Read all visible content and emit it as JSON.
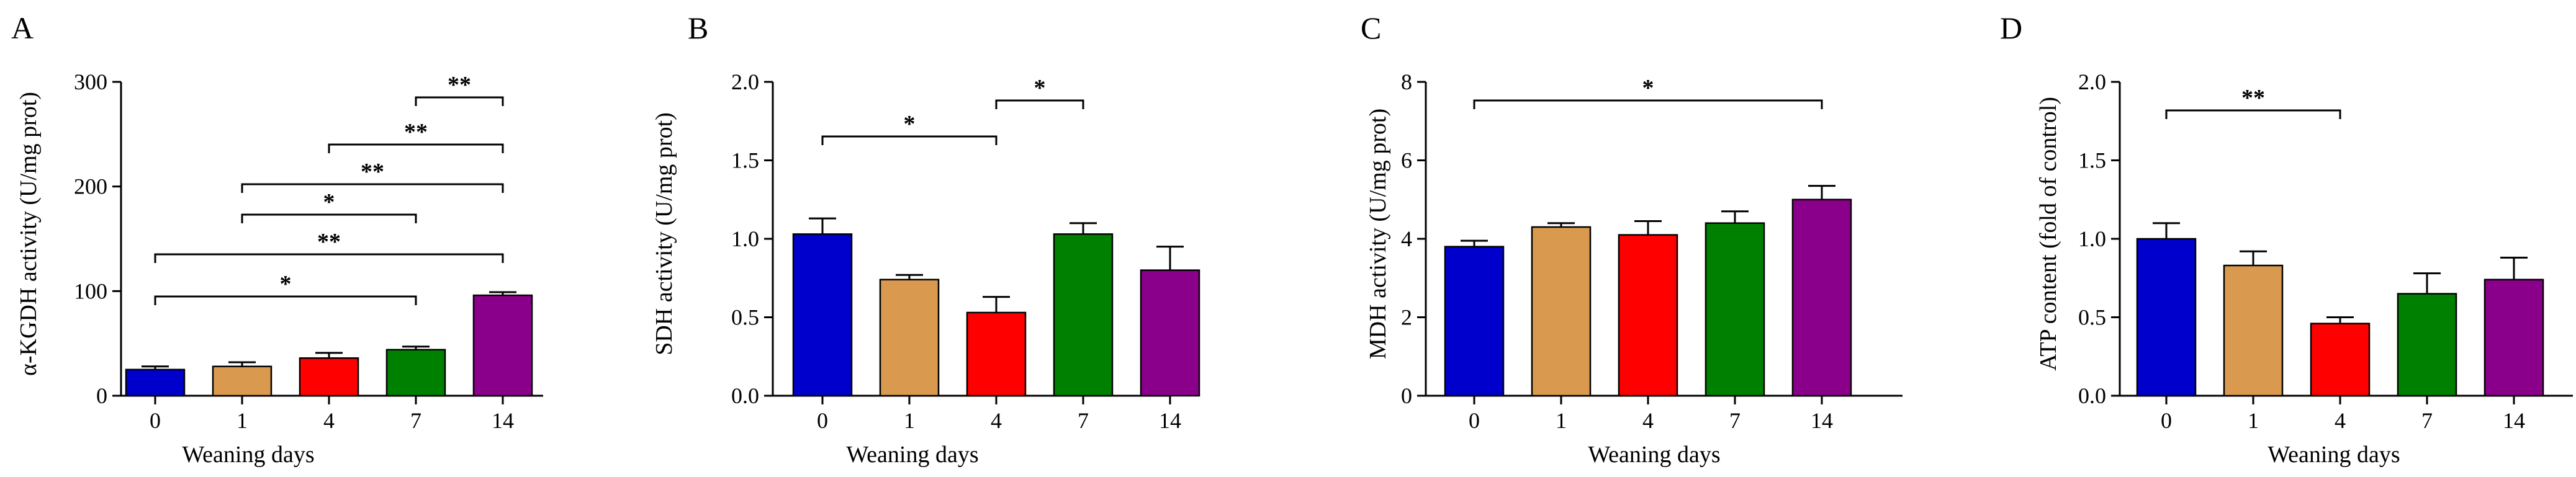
{
  "figure": {
    "panels": [
      "A",
      "B",
      "C",
      "D"
    ]
  },
  "chart_data": [
    {
      "panel": "A",
      "type": "bar",
      "title": "",
      "xlabel": "Weaning days",
      "ylabel": "α-KGDH activity (U/mg prot)",
      "categories": [
        "0",
        "1",
        "4",
        "7",
        "14"
      ],
      "values": [
        25,
        28,
        36,
        44,
        96
      ],
      "errors": [
        3,
        4,
        5,
        3,
        3
      ],
      "colors": [
        "#0000cc",
        "#d99a4f",
        "#ff0000",
        "#008000",
        "#8b008b"
      ],
      "ylim": [
        0,
        300
      ],
      "yticks": [
        "0",
        "100",
        "200",
        "300"
      ],
      "significance": [
        {
          "from": 3,
          "to": 4,
          "label": "**"
        },
        {
          "from": 2,
          "to": 4,
          "label": "**"
        },
        {
          "from": 1,
          "to": 4,
          "label": "**"
        },
        {
          "from": 1,
          "to": 3,
          "label": "*"
        },
        {
          "from": 0,
          "to": 4,
          "label": "**"
        },
        {
          "from": 0,
          "to": 3,
          "label": "*"
        }
      ]
    },
    {
      "panel": "B",
      "type": "bar",
      "title": "",
      "xlabel": "Weaning days",
      "ylabel": "SDH activity (U/mg prot)",
      "categories": [
        "0",
        "1",
        "4",
        "7",
        "14"
      ],
      "values": [
        1.03,
        0.74,
        0.53,
        1.03,
        0.8
      ],
      "errors": [
        0.1,
        0.03,
        0.1,
        0.07,
        0.15
      ],
      "colors": [
        "#0000cc",
        "#d99a4f",
        "#ff0000",
        "#008000",
        "#8b008b"
      ],
      "ylim": [
        0,
        2
      ],
      "yticks": [
        "0.0",
        "0.5",
        "1.0",
        "1.5",
        "2.0"
      ],
      "significance": [
        {
          "from": 2,
          "to": 3,
          "label": "*"
        },
        {
          "from": 0,
          "to": 2,
          "label": "*"
        }
      ]
    },
    {
      "panel": "C",
      "type": "bar",
      "title": "",
      "xlabel": "Weaning days",
      "ylabel": "MDH activity (U/mg prot)",
      "categories": [
        "0",
        "1",
        "4",
        "7",
        "14"
      ],
      "values": [
        3.8,
        4.3,
        4.1,
        4.4,
        5.0
      ],
      "errors": [
        0.15,
        0.1,
        0.35,
        0.3,
        0.35
      ],
      "colors": [
        "#0000cc",
        "#d99a4f",
        "#ff0000",
        "#008000",
        "#8b008b"
      ],
      "ylim": [
        0,
        8
      ],
      "yticks": [
        "0",
        "2",
        "4",
        "6",
        "8"
      ],
      "significance": [
        {
          "from": 0,
          "to": 4,
          "label": "*"
        }
      ]
    },
    {
      "panel": "D",
      "type": "bar",
      "title": "",
      "xlabel": "Weaning days",
      "ylabel": "ATP content (fold of control)",
      "categories": [
        "0",
        "1",
        "4",
        "7",
        "14"
      ],
      "values": [
        1.0,
        0.83,
        0.46,
        0.65,
        0.74
      ],
      "errors": [
        0.1,
        0.09,
        0.04,
        0.13,
        0.14
      ],
      "colors": [
        "#0000cc",
        "#d99a4f",
        "#ff0000",
        "#008000",
        "#8b008b"
      ],
      "ylim": [
        0,
        2
      ],
      "yticks": [
        "0.0",
        "0.5",
        "1.0",
        "1.5",
        "2.0"
      ],
      "significance": [
        {
          "from": 0,
          "to": 2,
          "label": "**"
        }
      ]
    }
  ]
}
